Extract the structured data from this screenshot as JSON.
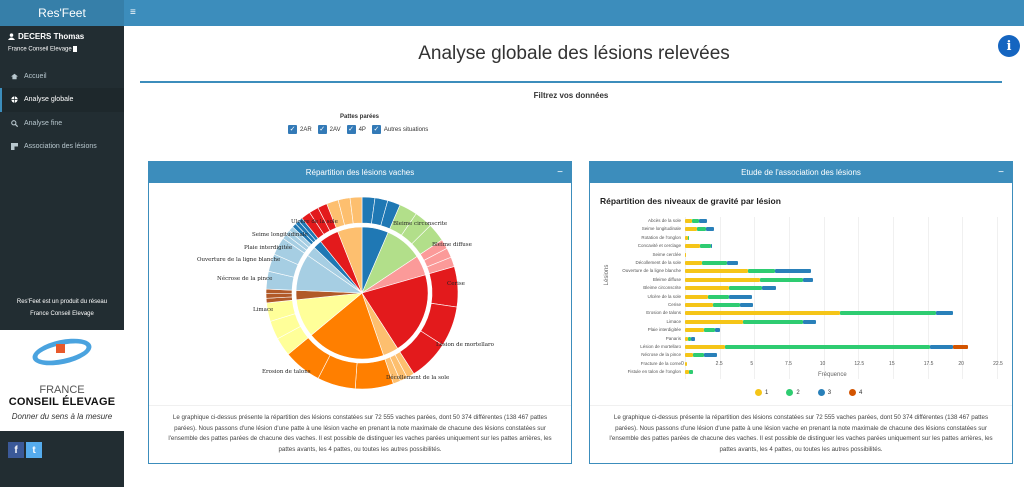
{
  "app": {
    "brand": "Res'Feet"
  },
  "user": {
    "name": "DECERS Thomas",
    "org": "France Conseil Elevage"
  },
  "sidebar": {
    "items": [
      {
        "label": "Accueil",
        "icon": "home-icon",
        "active": false
      },
      {
        "label": "Analyse globale",
        "icon": "globe-icon",
        "active": true
      },
      {
        "label": "Analyse fine",
        "icon": "search-plus-icon",
        "active": false
      },
      {
        "label": "Association des lésions",
        "icon": "puzzle-icon",
        "active": false
      }
    ],
    "promo_line1": "Res'Feet est un produit du réseau",
    "promo_line2": "France Conseil Elevage",
    "logo": {
      "line1": "FRANCE",
      "line2": "CONSEIL ÉLEVAGE",
      "tagline": "Donner du sens à la mesure"
    },
    "social": {
      "facebook": "f",
      "twitter": "t"
    }
  },
  "topbar": {
    "menu_icon": "≡"
  },
  "page": {
    "title": "Analyse globale des lésions relevées",
    "info_icon": "i"
  },
  "filter": {
    "title": "Filtrez vos données",
    "group_label": "Pattes parées",
    "options": [
      {
        "label": "2AR",
        "checked": true
      },
      {
        "label": "2AV",
        "checked": true
      },
      {
        "label": "4P",
        "checked": true
      },
      {
        "label": "Autres situations",
        "checked": true
      }
    ]
  },
  "box_left": {
    "title": "Répartition des lésions vaches",
    "collapse": "−",
    "description": "Le graphique ci-dessus présente la répartition des lésions constatées sur 72 555 vaches parées, dont 50 374 différentes (138 467 pattes parées). Nous passons d'une lésion d'une patte à une lésion vache en prenant la note maximale de chacune des lésions constatées sur l'ensemble des pattes parées de chacune des vaches. Il est possible de distinguer les vaches parées uniquement sur les pattes arrières, les pattes avants, les 4 pattes, ou toutes les autres possibilités."
  },
  "box_right": {
    "title": "Etude de l'association des lésions",
    "collapse": "−",
    "description": "Le graphique ci-dessus présente la répartition des lésions constatées sur 72 555 vaches parées, dont 50 374 différentes (138 467 pattes parées). Nous passons d'une lésion d'une patte à une lésion vache en prenant la note maximale de chacune des lésions constatées sur l'ensemble des pattes parées de chacune des vaches. Il est possible de distinguer les vaches parées uniquement sur les pattes arrières, les pattes avants, les 4 pattes, ou toutes les autres possibilités."
  },
  "chart_data": [
    {
      "type": "pie",
      "title": "Répartition des lésions vaches",
      "categories": [
        "Bleime circonscrite",
        "Bleime diffuse",
        "Cerise",
        "Lésion de mortellaro",
        "Décollement de la sole",
        "Erosion de talons",
        "Limace",
        "Nécrose de la pince",
        "Ouverture de la ligne blanche",
        "Plaie interdigitée",
        "Seime longitudinale",
        "Ulcère de la sole",
        "Autres"
      ],
      "values": [
        6.5,
        9.2,
        4.9,
        20.4,
        3.8,
        19.3,
        9.4,
        2.3,
        9.0,
        2.5,
        2.1,
        4.8,
        6.0
      ],
      "colors": [
        "#1f78b4",
        "#b2df8a",
        "#fb9a99",
        "#e31a1c",
        "#fdbf6f",
        "#ff7f00",
        "#ffff99",
        "#b15928",
        "#a6cee3",
        "#a6cee3",
        "#1f78b4",
        "#e31a1c",
        "#fdbf6f"
      ]
    },
    {
      "type": "bar",
      "orientation": "horizontal",
      "stacked": true,
      "title": "Répartition des niveaux de gravité par lésion",
      "xlabel": "Fréquence",
      "ylabel": "Lésions",
      "xlim": [
        0,
        22.5
      ],
      "xticks": [
        "0",
        "2.5",
        "5",
        "7.5",
        "10",
        "12.5",
        "15",
        "17.5",
        "20",
        "22.5"
      ],
      "legend_position": "bottom",
      "categories": [
        "Abcès de la sole",
        "Seime longitudinale",
        "Rotation de l'onglon",
        "Concavité et cerclage",
        "Seime cerclée",
        "Décollement de la sole",
        "Ouverture de la ligne blanche",
        "Bleime diffuse",
        "Bleime circonscrite",
        "Ulcère de la sole",
        "Cerise",
        "Erosion de talons",
        "Limace",
        "Plaie interdigitée",
        "Panaris",
        "Lésion de mortellaro",
        "Nécrose de la pince",
        "Fracture de la corne",
        "Fistule en talon de l'onglon"
      ],
      "series": [
        {
          "name": "1",
          "color": "#f5c518",
          "values": [
            0.54,
            0.9,
            0.2,
            1.1,
            0.07,
            1.25,
            4.55,
            5.4,
            3.2,
            1.65,
            2.05,
            11.2,
            4.15,
            1.35,
            0.25,
            2.85,
            0.6,
            0.12,
            0.28
          ]
        },
        {
          "name": "2",
          "color": "#2ecc71",
          "values": [
            0.46,
            0.6,
            0.1,
            0.75,
            0,
            1.75,
            1.95,
            3.1,
            2.35,
            1.55,
            1.95,
            6.9,
            4.35,
            0.8,
            0.15,
            14.85,
            0.75,
            0,
            0.27
          ]
        },
        {
          "name": "3",
          "color": "#2980b9",
          "values": [
            0.6,
            0.6,
            0,
            0.1,
            0,
            0.8,
            2.55,
            0.75,
            1.0,
            1.6,
            0.9,
            1.2,
            0.95,
            0.4,
            0.35,
            1.6,
            0.95,
            0,
            0
          ]
        },
        {
          "name": "4",
          "color": "#d35400",
          "values": [
            0,
            0,
            0,
            0,
            0,
            0,
            0,
            0,
            0,
            0,
            0,
            0,
            0,
            0,
            0,
            1.1,
            0,
            0,
            0
          ]
        }
      ]
    }
  ]
}
